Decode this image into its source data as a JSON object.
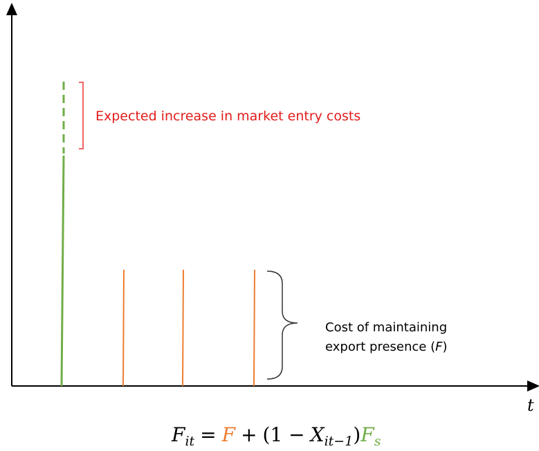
{
  "axis_label": "t",
  "annotations": {
    "entry_costs": "Expected increase in market entry costs",
    "maintaining": {
      "line1": "Cost of maintaining",
      "line2": "export presence (",
      "symbol": "F",
      "close": ")"
    }
  },
  "formula": {
    "lhs": "F",
    "lhs_sub": "it",
    "equals": "=",
    "F": "F",
    "plus": "+",
    "open": "(1 −",
    "X": "X",
    "X_sub": "it−1",
    "close": ")",
    "Fs": "F",
    "Fs_sub": "s"
  }
}
